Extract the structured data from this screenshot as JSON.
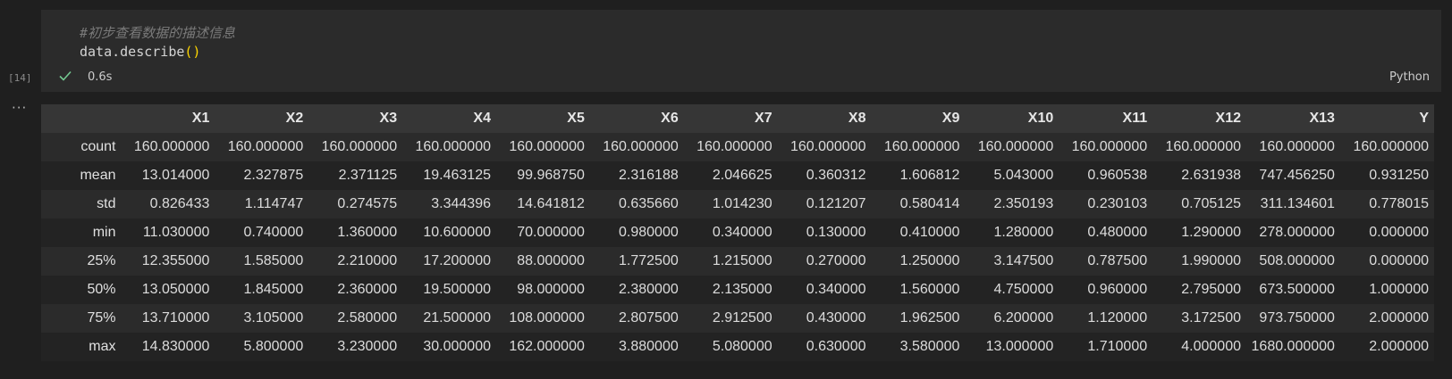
{
  "cell": {
    "execution_count": "[14]",
    "code_comment": "#初步查看数据的描述信息",
    "code_call": "data.describe",
    "code_parens": "()",
    "duration": "0.6s",
    "language": "Python",
    "output_ellipsis": "···"
  },
  "colors": {
    "success": "#73c991",
    "background": "#1f1f1f",
    "cell_background": "#2b2b2b"
  },
  "table": {
    "columns": [
      "X1",
      "X2",
      "X3",
      "X4",
      "X5",
      "X6",
      "X7",
      "X8",
      "X9",
      "X10",
      "X11",
      "X12",
      "X13",
      "Y"
    ],
    "rows": [
      {
        "index": "count",
        "values": [
          "160.000000",
          "160.000000",
          "160.000000",
          "160.000000",
          "160.000000",
          "160.000000",
          "160.000000",
          "160.000000",
          "160.000000",
          "160.000000",
          "160.000000",
          "160.000000",
          "160.000000",
          "160.000000"
        ]
      },
      {
        "index": "mean",
        "values": [
          "13.014000",
          "2.327875",
          "2.371125",
          "19.463125",
          "99.968750",
          "2.316188",
          "2.046625",
          "0.360312",
          "1.606812",
          "5.043000",
          "0.960538",
          "2.631938",
          "747.456250",
          "0.931250"
        ]
      },
      {
        "index": "std",
        "values": [
          "0.826433",
          "1.114747",
          "0.274575",
          "3.344396",
          "14.641812",
          "0.635660",
          "1.014230",
          "0.121207",
          "0.580414",
          "2.350193",
          "0.230103",
          "0.705125",
          "311.134601",
          "0.778015"
        ]
      },
      {
        "index": "min",
        "values": [
          "11.030000",
          "0.740000",
          "1.360000",
          "10.600000",
          "70.000000",
          "0.980000",
          "0.340000",
          "0.130000",
          "0.410000",
          "1.280000",
          "0.480000",
          "1.290000",
          "278.000000",
          "0.000000"
        ]
      },
      {
        "index": "25%",
        "values": [
          "12.355000",
          "1.585000",
          "2.210000",
          "17.200000",
          "88.000000",
          "1.772500",
          "1.215000",
          "0.270000",
          "1.250000",
          "3.147500",
          "0.787500",
          "1.990000",
          "508.000000",
          "0.000000"
        ]
      },
      {
        "index": "50%",
        "values": [
          "13.050000",
          "1.845000",
          "2.360000",
          "19.500000",
          "98.000000",
          "2.380000",
          "2.135000",
          "0.340000",
          "1.560000",
          "4.750000",
          "0.960000",
          "2.795000",
          "673.500000",
          "1.000000"
        ]
      },
      {
        "index": "75%",
        "values": [
          "13.710000",
          "3.105000",
          "2.580000",
          "21.500000",
          "108.000000",
          "2.807500",
          "2.912500",
          "0.430000",
          "1.962500",
          "6.200000",
          "1.120000",
          "3.172500",
          "973.750000",
          "2.000000"
        ]
      },
      {
        "index": "max",
        "values": [
          "14.830000",
          "5.800000",
          "3.230000",
          "30.000000",
          "162.000000",
          "3.880000",
          "5.080000",
          "0.630000",
          "3.580000",
          "13.000000",
          "1.710000",
          "4.000000",
          "1680.000000",
          "2.000000"
        ]
      }
    ]
  }
}
